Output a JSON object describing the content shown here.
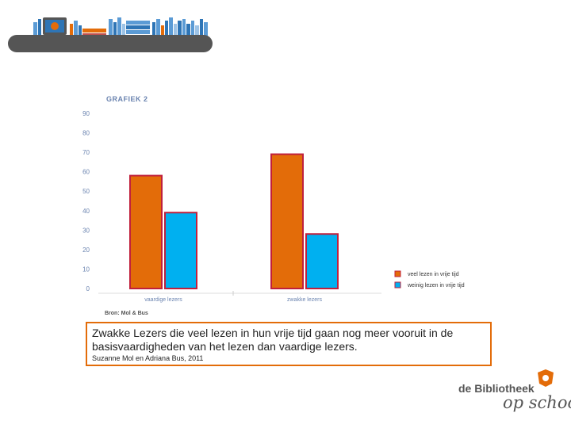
{
  "chart_data": {
    "type": "bar",
    "title": "GRAFIEK 2",
    "source": "Bron: Mol & Bus",
    "categories": [
      "vaardige lezers",
      "zwakke lezers"
    ],
    "series": [
      {
        "name": "veel lezen in vrije tijd",
        "values": [
          58,
          69
        ],
        "color": "#e36c09"
      },
      {
        "name": "weinig lezen in vrije tijd",
        "values": [
          39,
          28
        ],
        "color": "#00b0f0"
      }
    ],
    "ylim": [
      0,
      90
    ],
    "yticks": [
      90,
      80,
      70,
      60,
      50,
      40,
      30,
      20,
      10,
      0
    ],
    "legend_position": "bottom-right",
    "grid": false
  },
  "caption": {
    "main": "Zwakke Lezers die veel lezen in hun vrije tijd gaan nog meer vooruit in de basisvaardigheden van het lezen dan vaardige lezers.",
    "sub": "Suzanne Mol en Adriana Bus, 2011"
  },
  "logo": {
    "line1": "de Bibliotheek",
    "line2": "op school"
  },
  "colors": {
    "accent": "#e36c09",
    "blue": "#00b0f0",
    "bar_border": "#c0203c",
    "axis_text": "#6b84b0"
  }
}
